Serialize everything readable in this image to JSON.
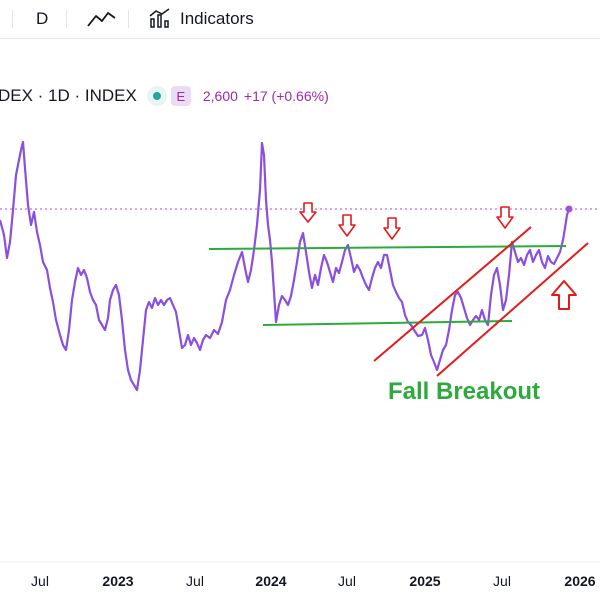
{
  "toolbar": {
    "interval": "D",
    "indicators_label": "Indicators"
  },
  "symbol": {
    "name": "DEX · 1D · INDEX",
    "badge_letter": "E",
    "price": "2,600",
    "change": "+17 (+0.66%)"
  },
  "colors": {
    "line": "#8a4fe0",
    "support_resistance": "#2eaa3c",
    "channel": "#e31b1b",
    "arrow": "#e31b1b",
    "last_price_line": "#a64fd6"
  },
  "chart_data": {
    "type": "line",
    "x_tick_labels": [
      "Jul",
      "2023",
      "Jul",
      "2024",
      "Jul",
      "2025",
      "Jul",
      "2026"
    ],
    "bold_ticks": [
      "2023",
      "2024",
      "2025",
      "2026"
    ],
    "annotations": [
      {
        "text": "Fall Breakout"
      }
    ],
    "last_value": 2600,
    "grid": false
  }
}
